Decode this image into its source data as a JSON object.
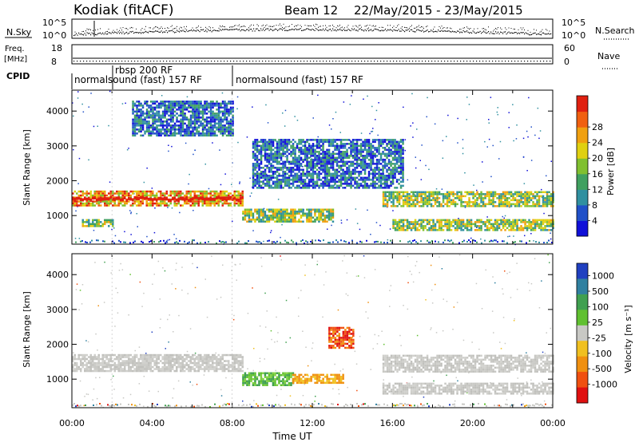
{
  "header": {
    "station": "Kodiak (fitACF)",
    "beam_label": "Beam 12",
    "date_range": "22/May/2015 - 23/May/2015"
  },
  "strips": {
    "nsky": {
      "label": "N.Sky",
      "tick_top": "10^5",
      "tick_bottom": "10^0",
      "right_label": "N.Search",
      "right_tick_top": "10^5",
      "right_tick_bottom": "10^0"
    },
    "freq": {
      "label_line1": "Freq.",
      "label_line2": "[MHz]",
      "tick_top": "18",
      "tick_bottom": "8",
      "right_label": "Nave",
      "right_tick_top": "60",
      "right_tick_bottom": "0"
    },
    "cpid": {
      "label": "CPID",
      "segments": [
        {
          "text": "normalsound (fast) 157 RF",
          "start_h": 0.0
        },
        {
          "text": "rbsp 200 RF",
          "start_h": 2.0
        },
        {
          "text": "normalsound (fast) 157 RF",
          "start_h": 8.0
        }
      ]
    }
  },
  "chart_data": [
    {
      "type": "heatmap",
      "panel": "power",
      "title": "",
      "xlabel": "",
      "ylabel": "Slant Range [km]",
      "xlim_hours": [
        0,
        24
      ],
      "ylim": [
        180,
        4600
      ],
      "yticks": [
        1000,
        2000,
        3000,
        4000
      ],
      "colorbar": {
        "label": "Power [dB]",
        "ticks": [
          "4",
          "8",
          "12",
          "16",
          "20",
          "24",
          "28"
        ],
        "colors": [
          "#1010d8",
          "#2050c8",
          "#3090a0",
          "#40a060",
          "#80c030",
          "#e0d010",
          "#f0a010",
          "#f06010",
          "#e02010"
        ]
      },
      "bands": [
        {
          "h0": 0.0,
          "h1": 8.5,
          "r0": 1280,
          "r1": 1720,
          "level": "high"
        },
        {
          "h0": 8.5,
          "h1": 13.0,
          "r0": 850,
          "r1": 1200,
          "level": "mid"
        },
        {
          "h0": 15.5,
          "h1": 24.0,
          "r0": 1250,
          "r1": 1700,
          "level": "mid"
        },
        {
          "h0": 16.0,
          "h1": 24.0,
          "r0": 600,
          "r1": 900,
          "level": "mid"
        },
        {
          "h0": 0.5,
          "h1": 2.0,
          "r0": 700,
          "r1": 900,
          "level": "mid"
        },
        {
          "h0": 3.0,
          "h1": 8.0,
          "r0": 3300,
          "r1": 4300,
          "level": "low"
        },
        {
          "h0": 9.0,
          "h1": 16.5,
          "r0": 1800,
          "r1": 3200,
          "level": "low"
        }
      ]
    },
    {
      "type": "heatmap",
      "panel": "velocity",
      "title": "",
      "xlabel": "Time UT",
      "ylabel": "Slant Range [km]",
      "xlim_hours": [
        0,
        24
      ],
      "ylim": [
        180,
        4600
      ],
      "yticks": [
        1000,
        2000,
        3000,
        4000
      ],
      "xticks": [
        "00:00",
        "04:00",
        "08:00",
        "12:00",
        "16:00",
        "20:00",
        "00:00"
      ],
      "colorbar": {
        "label": "Velocity [m s⁻¹]",
        "ticks": [
          "1000",
          "500",
          "100",
          "25",
          "-25",
          "-100",
          "-500",
          "-1000"
        ],
        "colors": [
          "#2040c0",
          "#3080a0",
          "#40a050",
          "#60c030",
          "#c8c8c4",
          "#f0c020",
          "#f09010",
          "#f05010",
          "#e01010"
        ]
      },
      "bands": [
        {
          "h0": 0.0,
          "h1": 8.5,
          "r0": 1250,
          "r1": 1720,
          "level": "ground"
        },
        {
          "h0": 8.5,
          "h1": 11.0,
          "r0": 850,
          "r1": 1200,
          "level": "positive"
        },
        {
          "h0": 11.0,
          "h1": 13.5,
          "r0": 900,
          "r1": 1150,
          "level": "negative_small"
        },
        {
          "h0": 12.8,
          "h1": 14.0,
          "r0": 1900,
          "r1": 2500,
          "level": "negative_large"
        },
        {
          "h0": 15.5,
          "h1": 24.0,
          "r0": 1200,
          "r1": 1700,
          "level": "ground"
        },
        {
          "h0": 15.5,
          "h1": 24.0,
          "r0": 600,
          "r1": 900,
          "level": "ground"
        }
      ]
    }
  ]
}
